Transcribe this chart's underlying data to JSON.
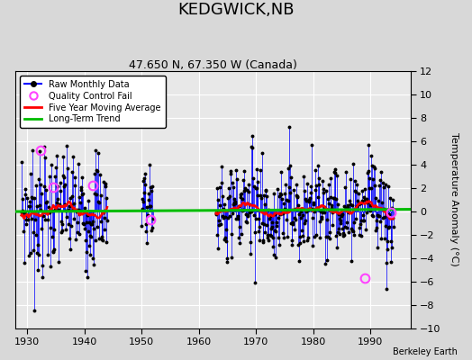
{
  "title": "KEDGWICK,NB",
  "subtitle": "47.650 N, 67.350 W (Canada)",
  "ylabel": "Temperature Anomaly (°C)",
  "credit": "Berkeley Earth",
  "xlim": [
    1928,
    1997
  ],
  "ylim": [
    -10,
    12
  ],
  "yticks": [
    -10,
    -8,
    -6,
    -4,
    -2,
    0,
    2,
    4,
    6,
    8,
    10,
    12
  ],
  "xticks": [
    1930,
    1940,
    1950,
    1960,
    1970,
    1980,
    1990
  ],
  "plot_bg_color": "#e8e8e8",
  "fig_bg_color": "#d8d8d8",
  "grid_color": "#ffffff",
  "raw_color": "#0000ff",
  "ma_color": "#ff0000",
  "trend_color": "#00bb00",
  "qc_color": "#ff44ff",
  "qc_points": [
    [
      1932.3,
      5.2
    ],
    [
      1934.5,
      2.1
    ],
    [
      1941.5,
      2.2
    ],
    [
      1951.5,
      -0.7
    ],
    [
      1989.0,
      -5.7
    ],
    [
      1993.5,
      -0.1
    ]
  ]
}
